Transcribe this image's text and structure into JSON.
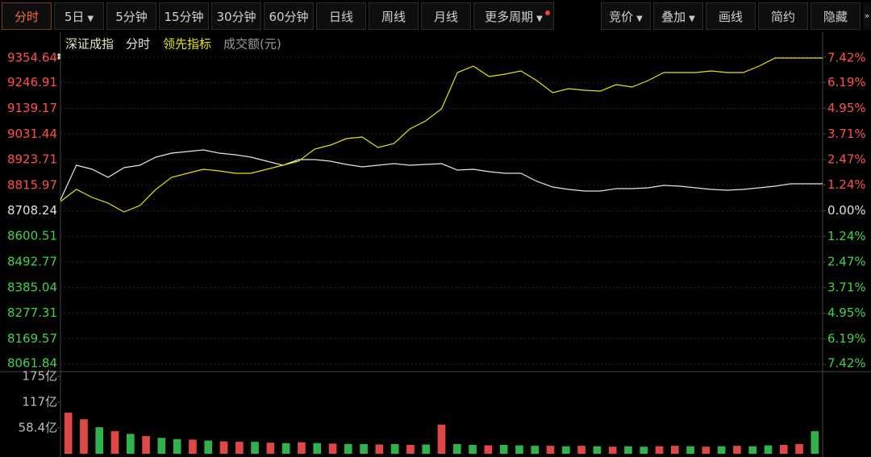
{
  "toolbar": {
    "tabs": [
      "分时",
      "5日",
      "5分钟",
      "15分钟",
      "30分钟",
      "60分钟",
      "日线",
      "周线",
      "月线",
      "更多周期"
    ],
    "right_tabs": [
      "竞价",
      "叠加",
      "画线",
      "简约",
      "隐藏"
    ]
  },
  "chart_data": [
    {
      "type": "line",
      "title": "深证成指",
      "categories": [
        null,
        null,
        null,
        null,
        null,
        null,
        null,
        null,
        null,
        null,
        null,
        null,
        null,
        null,
        null,
        null,
        null,
        null,
        null,
        null,
        null,
        null,
        null,
        null,
        null,
        null,
        null,
        null,
        null,
        null,
        null,
        null,
        null,
        null,
        null,
        null,
        null,
        null,
        null,
        null,
        null,
        null,
        null,
        null,
        null,
        null,
        null,
        null,
        null
      ],
      "series": [
        {
          "name": "分时",
          "color": "#e4e4e4",
          "values": [
            8754.0,
            8899.9,
            8883.0,
            8849.0,
            8889.8,
            8899.9,
            8933.9,
            8950.8,
            8957.6,
            8964.4,
            8950.8,
            8944.0,
            8933.9,
            8916.9,
            8899.9,
            8923.7,
            8923.7,
            8916.9,
            8903.3,
            8893.2,
            8899.9,
            8906.7,
            8899.9,
            8903.3,
            8906.7,
            8879.6,
            8883.0,
            8872.8,
            8866.0,
            8866.0,
            8832.1,
            8808.3,
            8798.1,
            8791.4,
            8791.4,
            8801.5,
            8801.5,
            8804.9,
            8815.1,
            8811.7,
            8804.9,
            8798.1,
            8794.8,
            8798.1,
            8804.9,
            8811.7,
            8821.9,
            8821.9,
            8821.9
          ]
        },
        {
          "name": "领先指标",
          "color": "#e6e600",
          "values": [
            8747.3,
            8798.1,
            8764.2,
            8740.5,
            8703.1,
            8730.3,
            8798.1,
            8849.0,
            8866.0,
            8883.0,
            8876.2,
            8866.0,
            8866.0,
            8883.0,
            8899.9,
            8916.9,
            8967.8,
            8984.8,
            9011.9,
            9018.7,
            8974.6,
            8991.5,
            9052.6,
            9086.6,
            9137.4,
            9290.1,
            9317.3,
            9273.2,
            9283.3,
            9296.9,
            9256.2,
            9205.3,
            9222.3,
            9215.5,
            9212.1,
            9239.2,
            9229.1,
            9256.2,
            9290.1,
            9290.1,
            9290.1,
            9296.9,
            9290.1,
            9290.1,
            9317.3,
            9351.2,
            9351.2,
            9351.2,
            9351.2
          ]
        }
      ],
      "ylim": [
        8061.84,
        9354.64
      ],
      "yticks": [
        9354.64,
        9246.91,
        9139.17,
        9031.44,
        8923.71,
        8815.97,
        8708.24,
        8600.51,
        8492.77,
        8385.04,
        8277.31,
        8169.57,
        8061.84
      ],
      "y2lim": [
        -7.42,
        7.42
      ],
      "y2ticks": [
        {
          "value": 7.42,
          "label": "7.42%"
        },
        {
          "value": 6.19,
          "label": "6.19%"
        },
        {
          "value": 4.95,
          "label": "4.95%"
        },
        {
          "value": 3.71,
          "label": "3.71%"
        },
        {
          "value": 2.47,
          "label": "2.47%"
        },
        {
          "value": 1.24,
          "label": "1.24%"
        },
        {
          "value": 0,
          "label": "0.00%"
        },
        {
          "value": -1.24,
          "label": "1.24%"
        },
        {
          "value": -2.47,
          "label": "2.47%"
        },
        {
          "value": -3.71,
          "label": "3.71%"
        },
        {
          "value": -4.95,
          "label": "4.95%"
        },
        {
          "value": -6.19,
          "label": "6.19%"
        },
        {
          "value": -7.42,
          "label": "7.42%"
        }
      ],
      "grid": true
    },
    {
      "type": "bar",
      "title": "成交额(元)",
      "values": [
        93,
        78,
        60,
        51,
        45,
        40,
        36,
        33,
        32,
        30,
        28,
        27,
        27,
        25,
        24,
        26,
        24,
        23,
        22,
        22,
        21,
        22,
        20,
        21,
        66,
        22,
        20,
        19,
        20,
        19,
        18,
        18,
        17,
        18,
        17,
        16,
        17,
        16,
        17,
        18,
        17,
        16,
        17,
        18,
        17,
        19,
        20,
        22,
        51
      ],
      "colors": [
        "#e04848",
        "#e04848",
        "#2fb34a",
        "#e04848",
        "#2fb34a",
        "#e04848",
        "#2fb34a",
        "#2fb34a",
        "#e04848",
        "#2fb34a",
        "#e04848",
        "#e04848",
        "#2fb34a",
        "#e04848",
        "#2fb34a",
        "#e04848",
        "#2fb34a",
        "#e04848",
        "#2fb34a",
        "#2fb34a",
        "#e04848",
        "#2fb34a",
        "#e04848",
        "#2fb34a",
        "#e04848",
        "#2fb34a",
        "#2fb34a",
        "#e04848",
        "#2fb34a",
        "#2fb34a",
        "#2fb34a",
        "#e04848",
        "#2fb34a",
        "#e04848",
        "#2fb34a",
        "#e04848",
        "#2fb34a",
        "#2fb34a",
        "#e04848",
        "#e04848",
        "#2fb34a",
        "#e04848",
        "#2fb34a",
        "#e04848",
        "#2fb34a",
        "#2fb34a",
        "#e04848",
        "#e04848",
        "#2fb34a"
      ],
      "ylim": [
        0,
        175
      ],
      "yticks": [
        {
          "value": 175,
          "label": "175亿"
        },
        {
          "value": 117,
          "label": "117亿"
        },
        {
          "value": 58.4,
          "label": "58.4亿"
        }
      ]
    }
  ]
}
